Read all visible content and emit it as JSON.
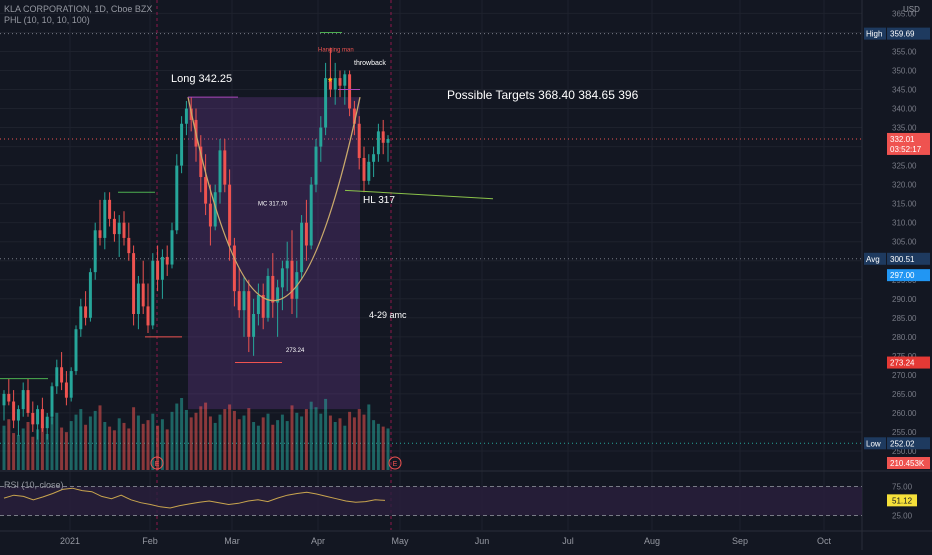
{
  "header": {
    "symbol_line": "KLA CORPORATION, 1D, Cboe BZX",
    "indicator_line": "PHL (10, 10, 10, 100)",
    "currency": "USD"
  },
  "rsi": {
    "label": "RSI (10, close)",
    "value": "51.12",
    "levels": [
      "75.00",
      "25.00"
    ]
  },
  "colors": {
    "background": "#131722",
    "up": "#26a69a",
    "down": "#ef5350",
    "cup": "#c9a96b",
    "rsi_line": "#c9a54e",
    "rsi_fill": "#2a1f3d",
    "annotation_text": "#ffffff"
  },
  "price_markers": [
    {
      "label": "High",
      "value": "359.69",
      "bg": "#1e3a5f"
    },
    {
      "label": "",
      "value": "332.01",
      "bg": "#ef5350"
    },
    {
      "label": "",
      "value": "03:52:17",
      "bg": "#ef5350"
    },
    {
      "label": "Avg",
      "value": "300.51",
      "bg": "#1e3a5f"
    },
    {
      "label": "",
      "value": "297.00",
      "bg": "#2196f3"
    },
    {
      "label": "",
      "value": "273.24",
      "bg": "#e53935"
    },
    {
      "label": "Low",
      "value": "252.02",
      "bg": "#1e3a5f"
    },
    {
      "label": "",
      "value": "210.453K",
      "bg": "#ef5350"
    }
  ],
  "annotations": {
    "long": "Long 342.25",
    "targets": "Possible Targets  368.40 384.65  396",
    "hl": "HL 317",
    "amc": "4-29 amc",
    "mc": "MC 317.70",
    "low_mark": "273.24",
    "hanging_man": "Hanging man",
    "throwback": "throwback"
  },
  "chart_data": {
    "type": "candlestick",
    "title": "KLA CORPORATION, 1D, Cboe BZX",
    "y_range": [
      245,
      368
    ],
    "y_ticks": [
      "365.00",
      "360.00",
      "355.00",
      "350.00",
      "345.00",
      "340.00",
      "335.00",
      "330.00",
      "325.00",
      "320.00",
      "315.00",
      "310.00",
      "305.00",
      "300.00",
      "295.00",
      "290.00",
      "285.00",
      "280.00",
      "275.00",
      "270.00",
      "265.00",
      "260.00",
      "255.00",
      "250.00"
    ],
    "x_ticks": [
      "2021",
      "Feb",
      "Mar",
      "Apr",
      "May",
      "Jun",
      "Jul",
      "Aug",
      "Sep",
      "Oct"
    ],
    "candles": [
      [
        262,
        266,
        258,
        265
      ],
      [
        265,
        269,
        262,
        263
      ],
      [
        263,
        266,
        256,
        258
      ],
      [
        258,
        262,
        254,
        261
      ],
      [
        261,
        268,
        259,
        266
      ],
      [
        266,
        269,
        259,
        260
      ],
      [
        260,
        263,
        255,
        257
      ],
      [
        257,
        262,
        253,
        261
      ],
      [
        261,
        264,
        255,
        256
      ],
      [
        256,
        260,
        253,
        259
      ],
      [
        259,
        268,
        257,
        267
      ],
      [
        267,
        274,
        265,
        272
      ],
      [
        272,
        276,
        266,
        268
      ],
      [
        268,
        271,
        262,
        264
      ],
      [
        264,
        272,
        263,
        271
      ],
      [
        271,
        283,
        270,
        282
      ],
      [
        282,
        290,
        280,
        288
      ],
      [
        288,
        292,
        283,
        285
      ],
      [
        285,
        298,
        284,
        297
      ],
      [
        297,
        310,
        295,
        308
      ],
      [
        308,
        316,
        304,
        306
      ],
      [
        306,
        318,
        303,
        316
      ],
      [
        316,
        318,
        309,
        311
      ],
      [
        311,
        313,
        305,
        307
      ],
      [
        307,
        312,
        301,
        310
      ],
      [
        310,
        313,
        304,
        306
      ],
      [
        306,
        310,
        300,
        302
      ],
      [
        302,
        304,
        283,
        286
      ],
      [
        286,
        296,
        282,
        294
      ],
      [
        294,
        300,
        286,
        288
      ],
      [
        288,
        294,
        281,
        283
      ],
      [
        283,
        302,
        282,
        300
      ],
      [
        300,
        304,
        292,
        295
      ],
      [
        295,
        303,
        290,
        301
      ],
      [
        301,
        304,
        296,
        299
      ],
      [
        299,
        310,
        298,
        308
      ],
      [
        308,
        328,
        307,
        325
      ],
      [
        325,
        338,
        323,
        336
      ],
      [
        336,
        342,
        333,
        340
      ],
      [
        340,
        343,
        334,
        337
      ],
      [
        337,
        340,
        326,
        330
      ],
      [
        330,
        333,
        318,
        322
      ],
      [
        322,
        328,
        312,
        315
      ],
      [
        315,
        320,
        304,
        309
      ],
      [
        309,
        320,
        308,
        318
      ],
      [
        318,
        332,
        315,
        329
      ],
      [
        329,
        332,
        318,
        320
      ],
      [
        320,
        324,
        300,
        304
      ],
      [
        304,
        306,
        288,
        292
      ],
      [
        292,
        298,
        285,
        287
      ],
      [
        287,
        296,
        280,
        292
      ],
      [
        292,
        295,
        276,
        280
      ],
      [
        280,
        290,
        275,
        286
      ],
      [
        286,
        294,
        283,
        291
      ],
      [
        291,
        294,
        282,
        285
      ],
      [
        285,
        298,
        284,
        296
      ],
      [
        296,
        302,
        285,
        289
      ],
      [
        289,
        295,
        280,
        293
      ],
      [
        293,
        300,
        287,
        298
      ],
      [
        298,
        305,
        292,
        300
      ],
      [
        300,
        308,
        286,
        290
      ],
      [
        290,
        300,
        285,
        297
      ],
      [
        297,
        312,
        295,
        310
      ],
      [
        310,
        316,
        300,
        304
      ],
      [
        304,
        322,
        303,
        320
      ],
      [
        320,
        332,
        318,
        330
      ],
      [
        330,
        338,
        326,
        335
      ],
      [
        335,
        352,
        333,
        348
      ],
      [
        348,
        356,
        343,
        345
      ],
      [
        345,
        352,
        341,
        348
      ],
      [
        348,
        350,
        343,
        346
      ],
      [
        346,
        350,
        341,
        349
      ],
      [
        349,
        350,
        338,
        340
      ],
      [
        340,
        342,
        333,
        336
      ],
      [
        336,
        338,
        324,
        327
      ],
      [
        327,
        330,
        318,
        321
      ],
      [
        321,
        328,
        320,
        326
      ],
      [
        326,
        330,
        322,
        328
      ],
      [
        328,
        336,
        326,
        334
      ],
      [
        334,
        337,
        328,
        331
      ],
      [
        331,
        333,
        326,
        332
      ]
    ],
    "volume": [
      48,
      55,
      40,
      38,
      45,
      52,
      36,
      44,
      50,
      39,
      57,
      62,
      46,
      41,
      53,
      60,
      66,
      49,
      58,
      64,
      70,
      52,
      47,
      43,
      56,
      51,
      45,
      68,
      59,
      50,
      54,
      61,
      48,
      55,
      44,
      63,
      72,
      78,
      65,
      57,
      62,
      69,
      73,
      58,
      51,
      60,
      66,
      71,
      64,
      55,
      59,
      67,
      52,
      48,
      57,
      61,
      49,
      54,
      60,
      53,
      70,
      62,
      58,
      66,
      74,
      68,
      61,
      77,
      59,
      52,
      56,
      48,
      63,
      57,
      66,
      60,
      71,
      54,
      50,
      47,
      45
    ],
    "rsi": [
      55,
      60,
      58,
      52,
      57,
      63,
      70,
      72,
      68,
      66,
      58,
      54,
      60,
      52,
      47,
      44,
      40,
      38,
      42,
      45,
      48,
      50,
      47,
      44,
      46,
      50,
      52,
      49,
      55,
      60,
      63,
      65,
      62,
      58,
      54,
      50,
      48,
      49,
      52,
      51
    ]
  }
}
